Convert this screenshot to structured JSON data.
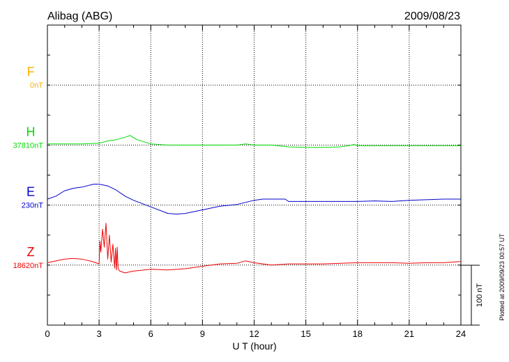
{
  "header": {
    "station": "Alibag (ABG)",
    "date": "2009/08/23"
  },
  "plotted_note": "Plotted at 2009/09/23 00:57 UT",
  "chart_data": {
    "type": "line",
    "title": "Alibag (ABG)",
    "subtitle": "2009/08/23",
    "xlabel": "U T (hour)",
    "ylabel": "",
    "xlim": [
      0,
      24
    ],
    "x_ticks": [
      "0",
      "3",
      "6",
      "9",
      "12",
      "15",
      "18",
      "21",
      "24"
    ],
    "grid": true,
    "scale_bar": {
      "label": "100 nT",
      "value_nT": 100
    },
    "series": [
      {
        "name": "F",
        "baseline_label": "0nT",
        "color": "#ffb000",
        "x": [],
        "y": []
      },
      {
        "name": "H",
        "baseline_label": "37810nT",
        "color": "#00dd00",
        "x": [
          0,
          1,
          2,
          3,
          3.5,
          4,
          4.5,
          4.8,
          5.2,
          6,
          7,
          8,
          9,
          10,
          11,
          11.5,
          12,
          13,
          14,
          15,
          16,
          17,
          17.5,
          17.8,
          18,
          19,
          20,
          21,
          22,
          23,
          24
        ],
        "y": [
          2,
          2,
          2,
          3,
          7,
          9,
          13,
          16,
          9,
          2,
          0,
          0,
          0,
          0,
          0,
          2,
          0,
          0,
          -3,
          -4,
          -4,
          -3,
          -1,
          1,
          -1,
          -1,
          -1,
          -1,
          -1,
          -1,
          -1
        ]
      },
      {
        "name": "E",
        "baseline_label": "230nT",
        "color": "#0000cc",
        "x": [
          0,
          0.5,
          1,
          1.5,
          2,
          2.7,
          3,
          3.5,
          4,
          4.5,
          5,
          6,
          7,
          7.5,
          8,
          9,
          10,
          11,
          12,
          12.5,
          13,
          13.8,
          14,
          15,
          16,
          17,
          18,
          19,
          20,
          21,
          22,
          23,
          24
        ],
        "y": [
          10,
          15,
          24,
          28,
          30,
          35,
          35,
          32,
          25,
          15,
          8,
          -3,
          -14,
          -15,
          -14,
          -8,
          -2,
          1,
          8,
          10,
          10,
          10,
          6,
          6,
          6,
          6,
          6,
          7,
          6,
          8,
          9,
          10,
          10
        ]
      },
      {
        "name": "Z",
        "baseline_label": "18620nT",
        "color": "#ee0000",
        "x": [
          0,
          1,
          1.5,
          2,
          2.6,
          3,
          3.05,
          3.1,
          3.2,
          3.3,
          3.4,
          3.5,
          3.6,
          3.7,
          3.8,
          3.9,
          3.95,
          4,
          4.05,
          4.1,
          4.2,
          4.5,
          5,
          6,
          7,
          8,
          9,
          10,
          11,
          11.5,
          12,
          13,
          14,
          15,
          16,
          17,
          18,
          19,
          20,
          21,
          22,
          23,
          24
        ],
        "y": [
          4,
          10,
          11,
          10,
          6,
          2,
          40,
          22,
          60,
          30,
          70,
          10,
          50,
          5,
          35,
          -5,
          28,
          -8,
          30,
          -6,
          -10,
          -13,
          -10,
          -7,
          -8,
          -6,
          -2,
          2,
          3,
          7,
          4,
          0,
          2,
          2,
          2,
          3,
          4,
          4,
          4,
          3,
          4,
          4,
          6
        ]
      }
    ]
  }
}
